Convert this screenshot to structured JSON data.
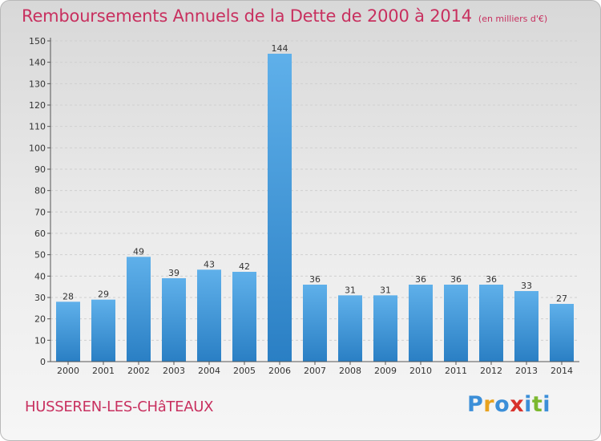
{
  "header": {
    "title": "Remboursements Annuels de la Dette de 2000 à 2014",
    "unit": "(en milliers d'€)"
  },
  "footer": {
    "commune": "HUSSEREN-LES-CHâTEAUX",
    "logo_letters": [
      "P",
      "r",
      "o",
      "x",
      "i",
      "t",
      "i"
    ],
    "logo_colors": [
      "#3c8fd8",
      "#e8a21e",
      "#3c8fd8",
      "#d8322c",
      "#3c8fd8",
      "#7cb82f",
      "#3c8fd8"
    ]
  },
  "chart_data": {
    "type": "bar",
    "title": "Remboursements Annuels de la Dette de 2000 à 2014",
    "xlabel": "",
    "ylabel": "",
    "categories": [
      "2000",
      "2001",
      "2002",
      "2003",
      "2004",
      "2005",
      "2006",
      "2007",
      "2008",
      "2009",
      "2010",
      "2011",
      "2012",
      "2013",
      "2014"
    ],
    "values": [
      28,
      29,
      49,
      39,
      43,
      42,
      144,
      36,
      31,
      31,
      36,
      36,
      36,
      33,
      27
    ],
    "ylim": [
      0,
      150
    ],
    "yticks": [
      0,
      10,
      20,
      30,
      40,
      50,
      60,
      70,
      80,
      90,
      100,
      110,
      120,
      130,
      140,
      150
    ],
    "grid": true,
    "bar_color": "#3f97db"
  }
}
